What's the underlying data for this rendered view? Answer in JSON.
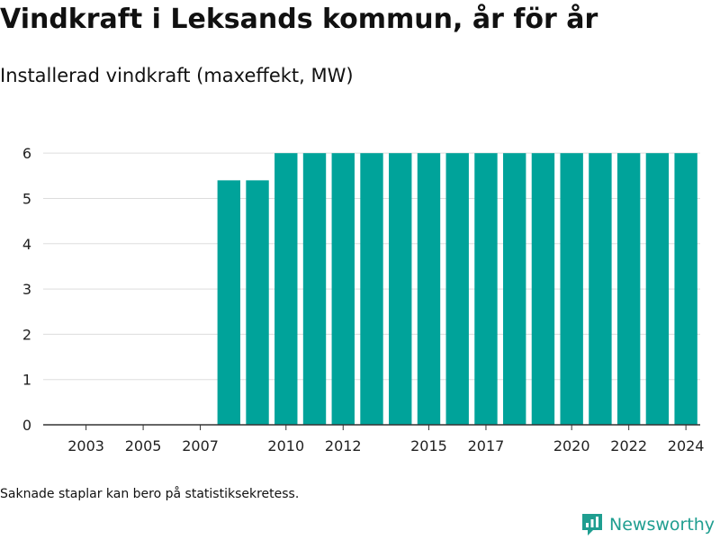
{
  "header": {
    "title": "Vindkraft i Leksands kommun, år för år",
    "subtitle": "Installerad vindkraft (maxeffekt, MW)"
  },
  "footer": {
    "note": "Saknade staplar kan bero på statistiksekretess.",
    "brand": "Newsworthy"
  },
  "colors": {
    "bar": "#00a39a",
    "brand": "#1f9e90",
    "grid": "#dddddd",
    "axis": "#333333"
  },
  "chart_data": {
    "type": "bar",
    "categories": [
      "2002",
      "2003",
      "2004",
      "2005",
      "2006",
      "2007",
      "2008",
      "2009",
      "2010",
      "2011",
      "2012",
      "2013",
      "2014",
      "2015",
      "2016",
      "2017",
      "2018",
      "2019",
      "2020",
      "2021",
      "2022",
      "2023",
      "2024"
    ],
    "values": [
      0,
      0,
      0,
      0,
      0,
      0,
      5.4,
      5.4,
      6,
      6,
      6,
      6,
      6,
      6,
      6,
      6,
      6,
      6,
      6,
      6,
      6,
      6,
      6
    ],
    "x_tick_labels": [
      "2003",
      "2005",
      "2007",
      "2010",
      "2012",
      "2015",
      "2017",
      "2020",
      "2022",
      "2024"
    ],
    "y_ticks": [
      0,
      1,
      2,
      3,
      4,
      5,
      6
    ],
    "ylim": [
      0,
      6.6
    ],
    "grid": true,
    "legend": "none"
  }
}
